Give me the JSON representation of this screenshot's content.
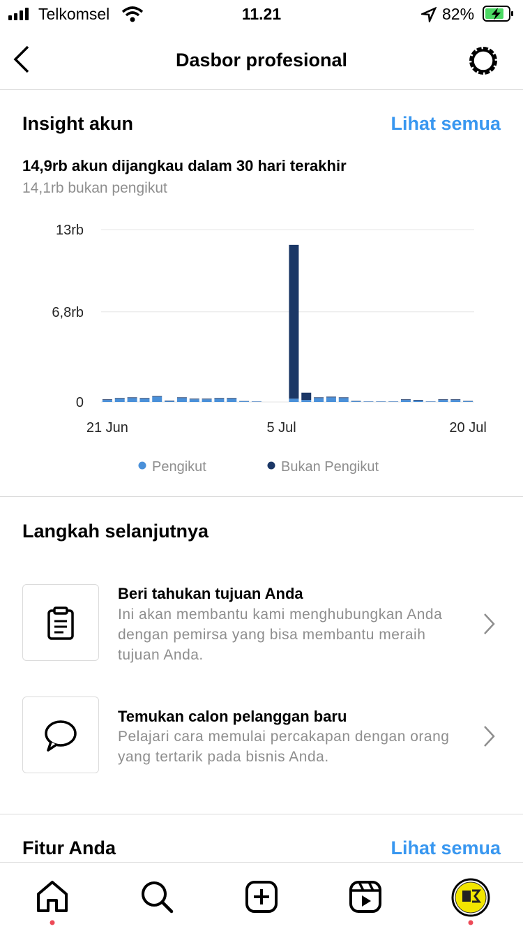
{
  "status_bar": {
    "carrier": "Telkomsel",
    "time": "11.21",
    "battery": "82%"
  },
  "header": {
    "title": "Dasbor profesional"
  },
  "insights": {
    "title": "Insight akun",
    "link": "Lihat semua",
    "reach": "14,9rb akun dijangkau dalam 30 hari terakhir",
    "non_followers": "14,1rb bukan pengikut"
  },
  "chart_data": {
    "type": "bar",
    "stacked": true,
    "categories": [
      "21 Jun",
      null,
      null,
      null,
      null,
      null,
      null,
      null,
      null,
      null,
      null,
      null,
      null,
      null,
      "5 Jul",
      null,
      null,
      null,
      null,
      null,
      null,
      null,
      null,
      null,
      null,
      null,
      null,
      null,
      null,
      "20 Jul"
    ],
    "series": [
      {
        "name": "Pengikut",
        "color": "#4a90d9",
        "values": [
          150,
          250,
          300,
          250,
          400,
          50,
          300,
          200,
          200,
          250,
          250,
          50,
          30,
          0,
          0,
          250,
          150,
          300,
          350,
          300,
          50,
          30,
          30,
          30,
          150,
          100,
          30,
          150,
          150,
          50
        ]
      },
      {
        "name": "Bukan Pengikut",
        "color": "#1b3766",
        "values": [
          50,
          50,
          50,
          50,
          50,
          50,
          50,
          50,
          50,
          50,
          50,
          20,
          10,
          0,
          0,
          11600,
          550,
          50,
          50,
          50,
          30,
          10,
          10,
          10,
          50,
          50,
          10,
          50,
          50,
          30
        ]
      }
    ],
    "ylim": [
      0,
      13000
    ],
    "yticks": [
      0,
      {
        "value": 6800,
        "label": "6,8rb"
      },
      {
        "value": 13000,
        "label": "13rb"
      }
    ],
    "grid": true
  },
  "next_steps": {
    "title": "Langkah selanjutnya",
    "items": [
      {
        "title": "Beri tahukan tujuan Anda",
        "description": "Ini akan membantu kami menghubungkan Anda dengan pemirsa yang bisa membantu meraih tujuan Anda."
      },
      {
        "title": "Temukan calon pelanggan baru",
        "description": "Pelajari cara memulai percakapan dengan orang yang tertarik pada bisnis Anda."
      }
    ]
  },
  "features": {
    "title": "Fitur Anda",
    "link": "Lihat semua"
  }
}
